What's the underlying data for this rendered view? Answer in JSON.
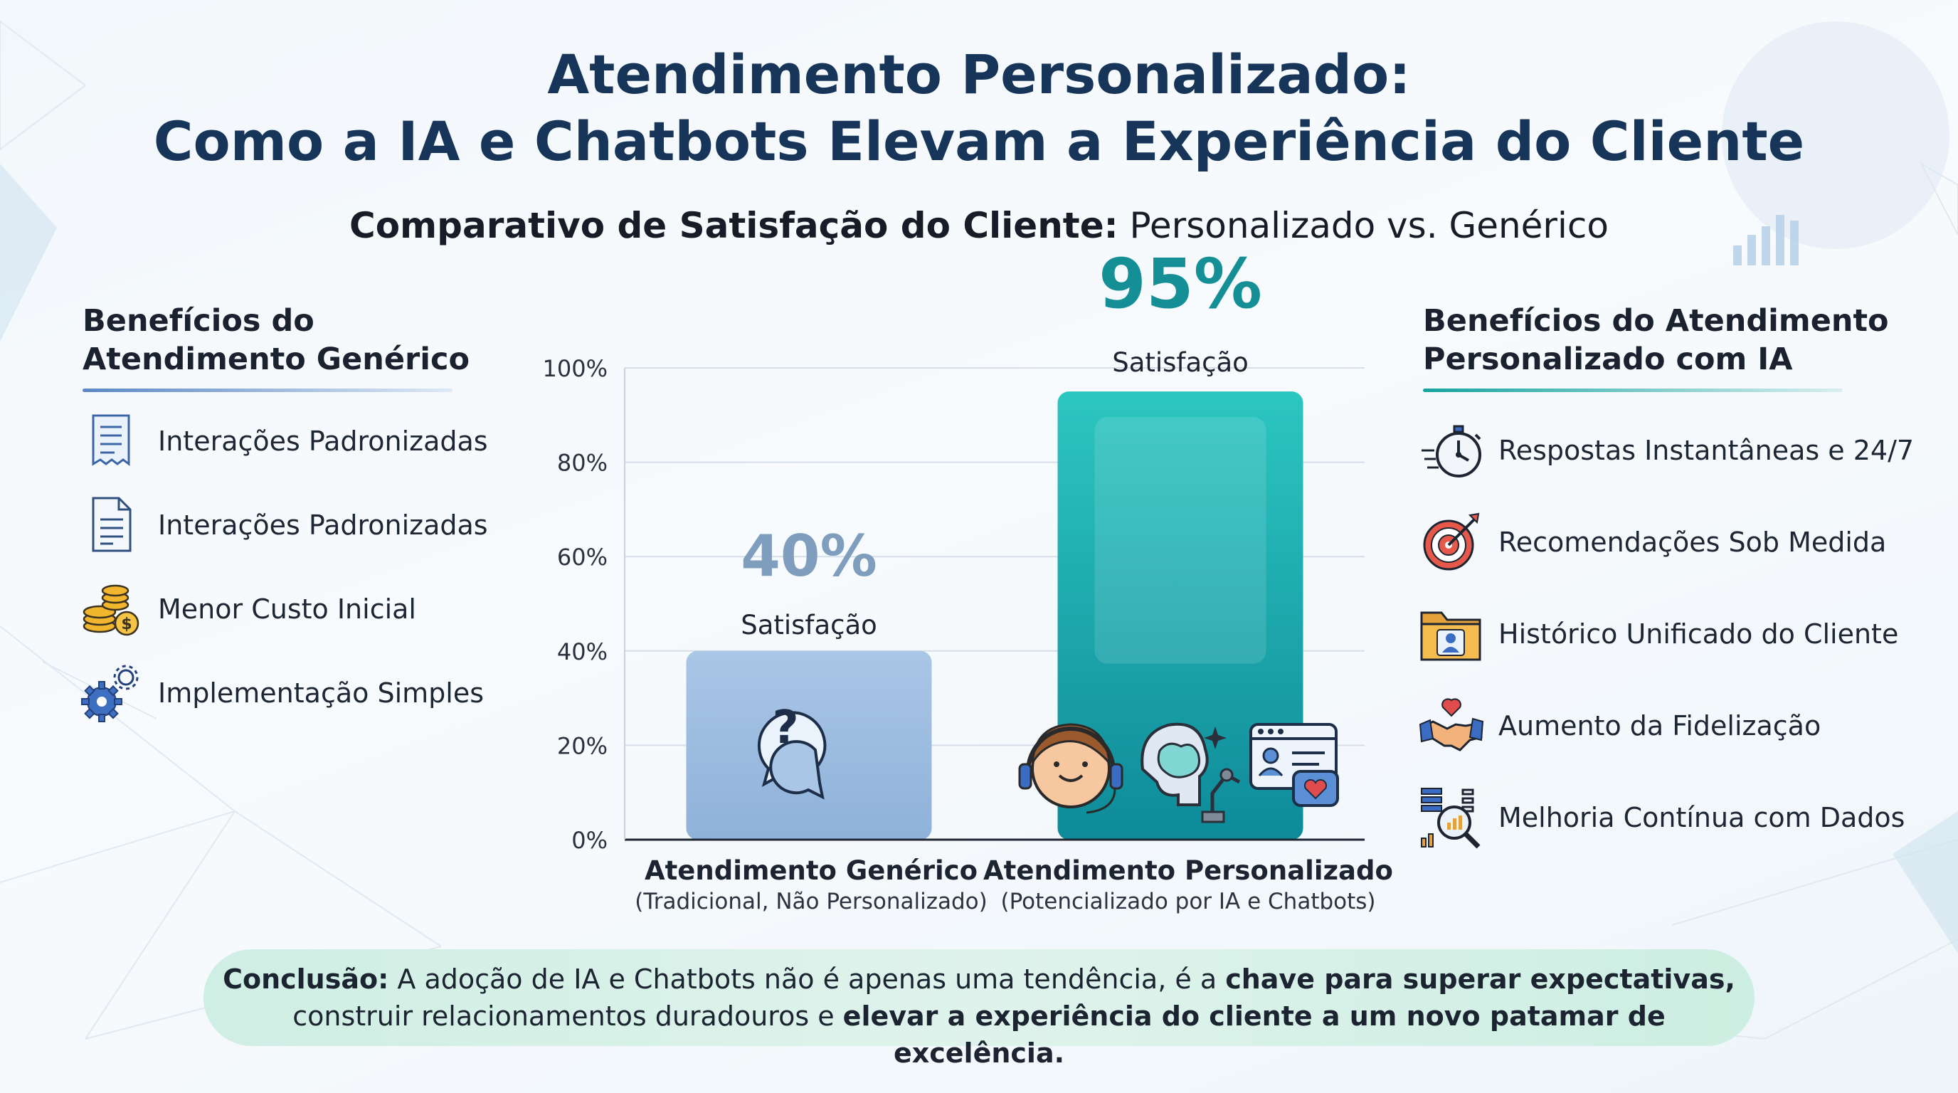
{
  "header": {
    "title_line1": "Atendimento Personalizado:",
    "title_line2": "Como a IA e Chatbots Elevam a Experiência do Cliente",
    "subtitle_bold": "Comparativo de Satisfação do Cliente:",
    "subtitle_rest": " Personalizado vs. Genérico"
  },
  "left_panel": {
    "title_line1": "Benefícios do",
    "title_line2": "Atendimento Genérico",
    "items": [
      {
        "label": "Interações Padronizadas",
        "icon": "document-icon"
      },
      {
        "label": "Interações Padronizadas",
        "icon": "document-icon"
      },
      {
        "label": "Menor Custo Inicial",
        "icon": "coins-icon"
      },
      {
        "label": "Implementação Simples",
        "icon": "gears-icon"
      }
    ]
  },
  "right_panel": {
    "title_line1": "Benefícios do Atendimento",
    "title_line2": "Personalizado com IA",
    "items": [
      {
        "label": "Respostas Instantâneas e 24/7",
        "icon": "stopwatch-icon"
      },
      {
        "label": "Recomendações Sob Medida",
        "icon": "target-icon"
      },
      {
        "label": "Histórico Unificado do Cliente",
        "icon": "folder-user-icon"
      },
      {
        "label": "Aumento da Fidelização",
        "icon": "handshake-heart-icon"
      },
      {
        "label": "Melhoria Contínua com Dados",
        "icon": "data-analysis-icon"
      }
    ]
  },
  "chart_data": {
    "type": "bar",
    "title": "Comparativo de Satisfação do Cliente: Personalizado vs. Genérico",
    "xlabel": "",
    "ylabel": "",
    "ylim": [
      0,
      100
    ],
    "yticks": [
      0,
      20,
      40,
      60,
      80,
      100
    ],
    "ytick_suffix": "%",
    "grid": true,
    "categories": [
      "Atendimento Genérico",
      "Atendimento Personalizado"
    ],
    "category_sublabels": [
      "(Tradicional, Não Personalizado)",
      "(Potencializado por IA e Chatbots)"
    ],
    "values": [
      40,
      95
    ],
    "value_labels": [
      "40%",
      "95%"
    ],
    "value_caption": "Satisfação",
    "colors": [
      "#8fb2d9",
      "#14a9a6"
    ],
    "value_label_colors": [
      "#7f9dbd",
      "#158f96"
    ]
  },
  "conclusion": {
    "bold1": "Conclusão:",
    "text1": " A adoção de IA e Chatbots não é apenas uma tendência, é a ",
    "bold2": "chave para superar expectativas,",
    "text2": "construir relacionamentos duradouros e ",
    "bold3": "elevar a experiência do cliente a um novo patamar de excelência."
  }
}
